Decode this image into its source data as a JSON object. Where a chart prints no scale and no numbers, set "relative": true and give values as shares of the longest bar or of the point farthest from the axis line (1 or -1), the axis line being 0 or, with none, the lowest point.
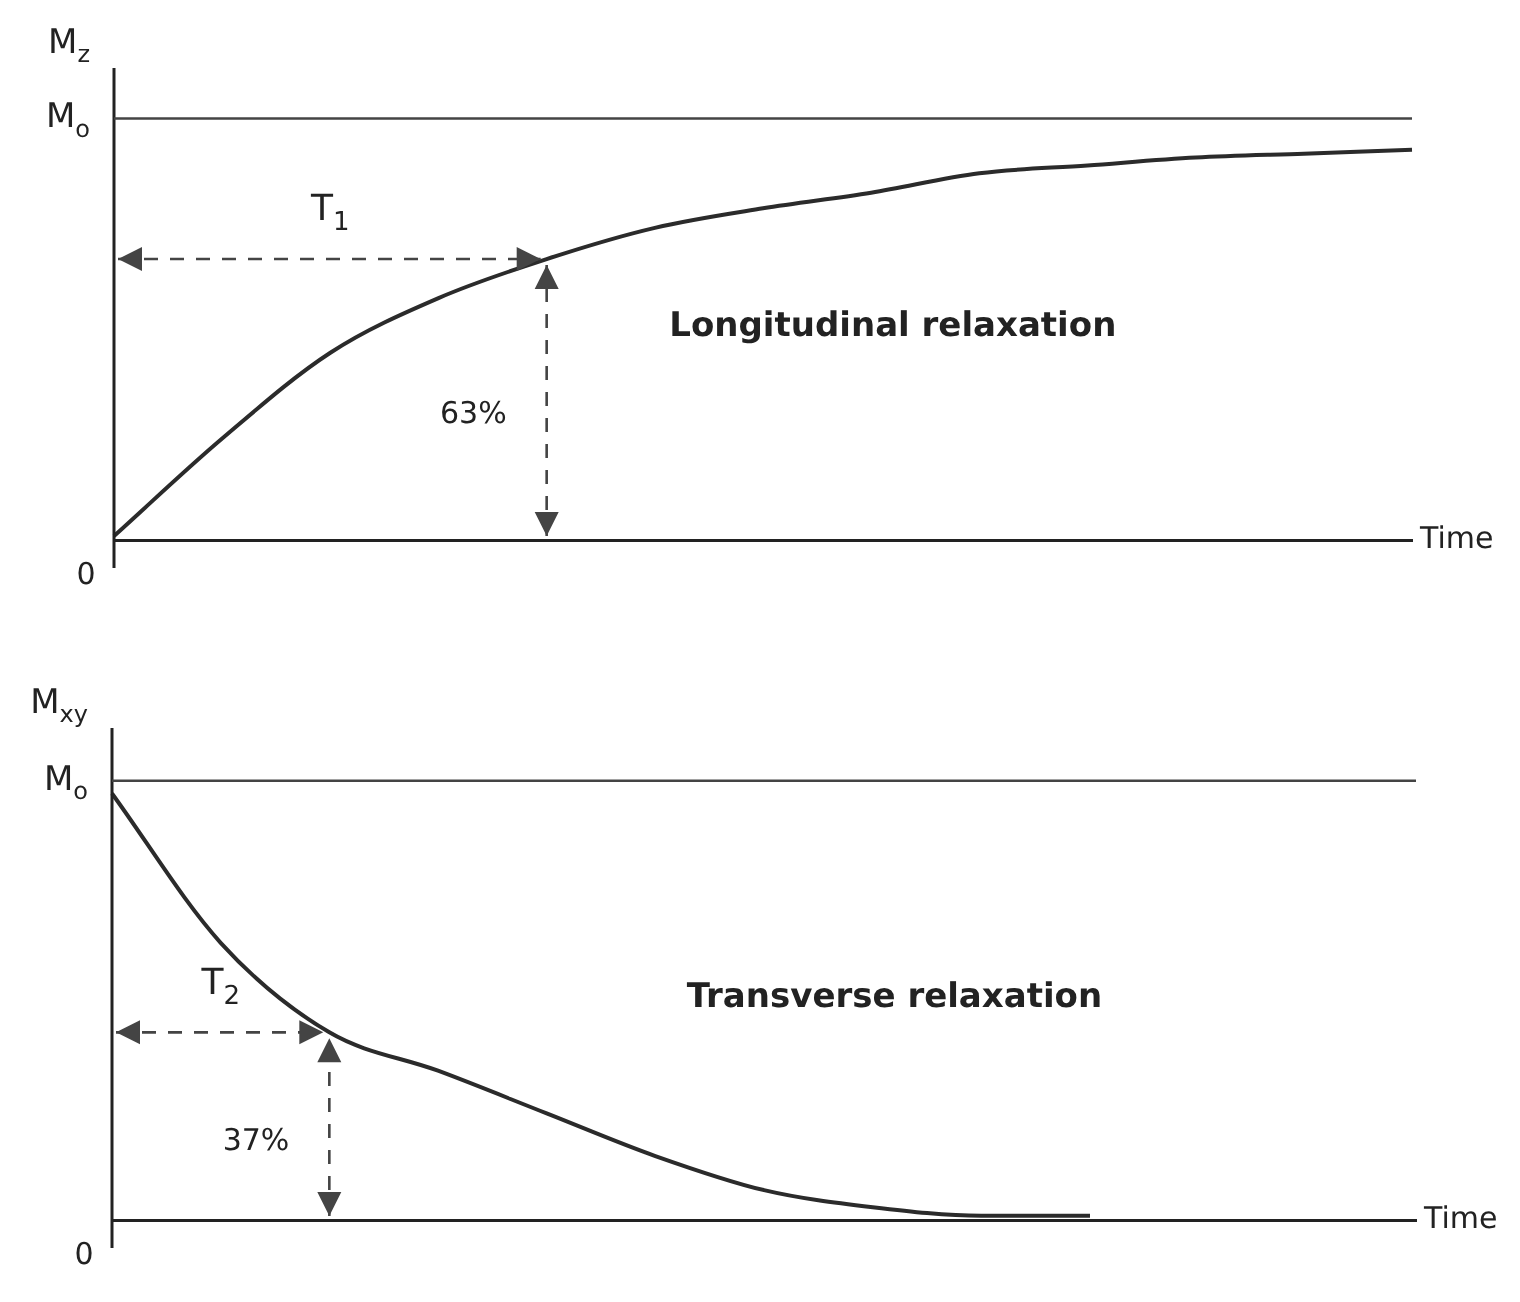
{
  "chart_data": [
    {
      "type": "line",
      "ylabel": "M$_{z}$",
      "xlabel": "Time",
      "relative": true,
      "categories": [
        null,
        null,
        null,
        null,
        null,
        null,
        null,
        null,
        null,
        null,
        null,
        null,
        null
      ],
      "series": [
        {
          "color": "#2b2b2b",
          "values": [
            0.01,
            0.26,
            0.48,
            0.62,
            0.72,
            0.8,
            0.85,
            0.89,
            0.94,
            0.96,
            0.98,
            0.99,
            1
          ]
        }
      ],
      "ref_lines": [
        {
          "axis": "y",
          "value": 1.08,
          "label": "M$_{o}$",
          "color": "#444444"
        }
      ],
      "annotations": [
        "T$_{1}$",
        "63%",
        "Longitudinal relaxation",
        "0"
      ],
      "tick_labels": false,
      "grid": false,
      "legend": false,
      "marker": "none",
      "line_style": "solid"
    },
    {
      "type": "line",
      "ylabel": "M$_{xy}$",
      "xlabel": "Time",
      "relative": true,
      "categories": [
        null,
        null,
        null,
        null,
        null,
        null,
        null,
        null,
        null,
        null,
        null,
        null,
        null
      ],
      "series": [
        {
          "color": "#2b2b2b",
          "values": [
            1,
            0.65,
            0.44,
            0.35,
            0.25,
            0.15,
            0.07,
            0.03,
            0.01,
            0.01,
            null,
            null,
            null
          ]
        }
      ],
      "ref_lines": [
        {
          "axis": "y",
          "value": 1.03,
          "label": "M$_{o}$",
          "color": "#444444"
        }
      ],
      "annotations": [
        "T$_{2}$",
        "37%",
        "Transverse relaxation",
        "0"
      ],
      "tick_labels": false,
      "grid": false,
      "legend": false,
      "marker": "none",
      "line_style": "solid"
    }
  ]
}
